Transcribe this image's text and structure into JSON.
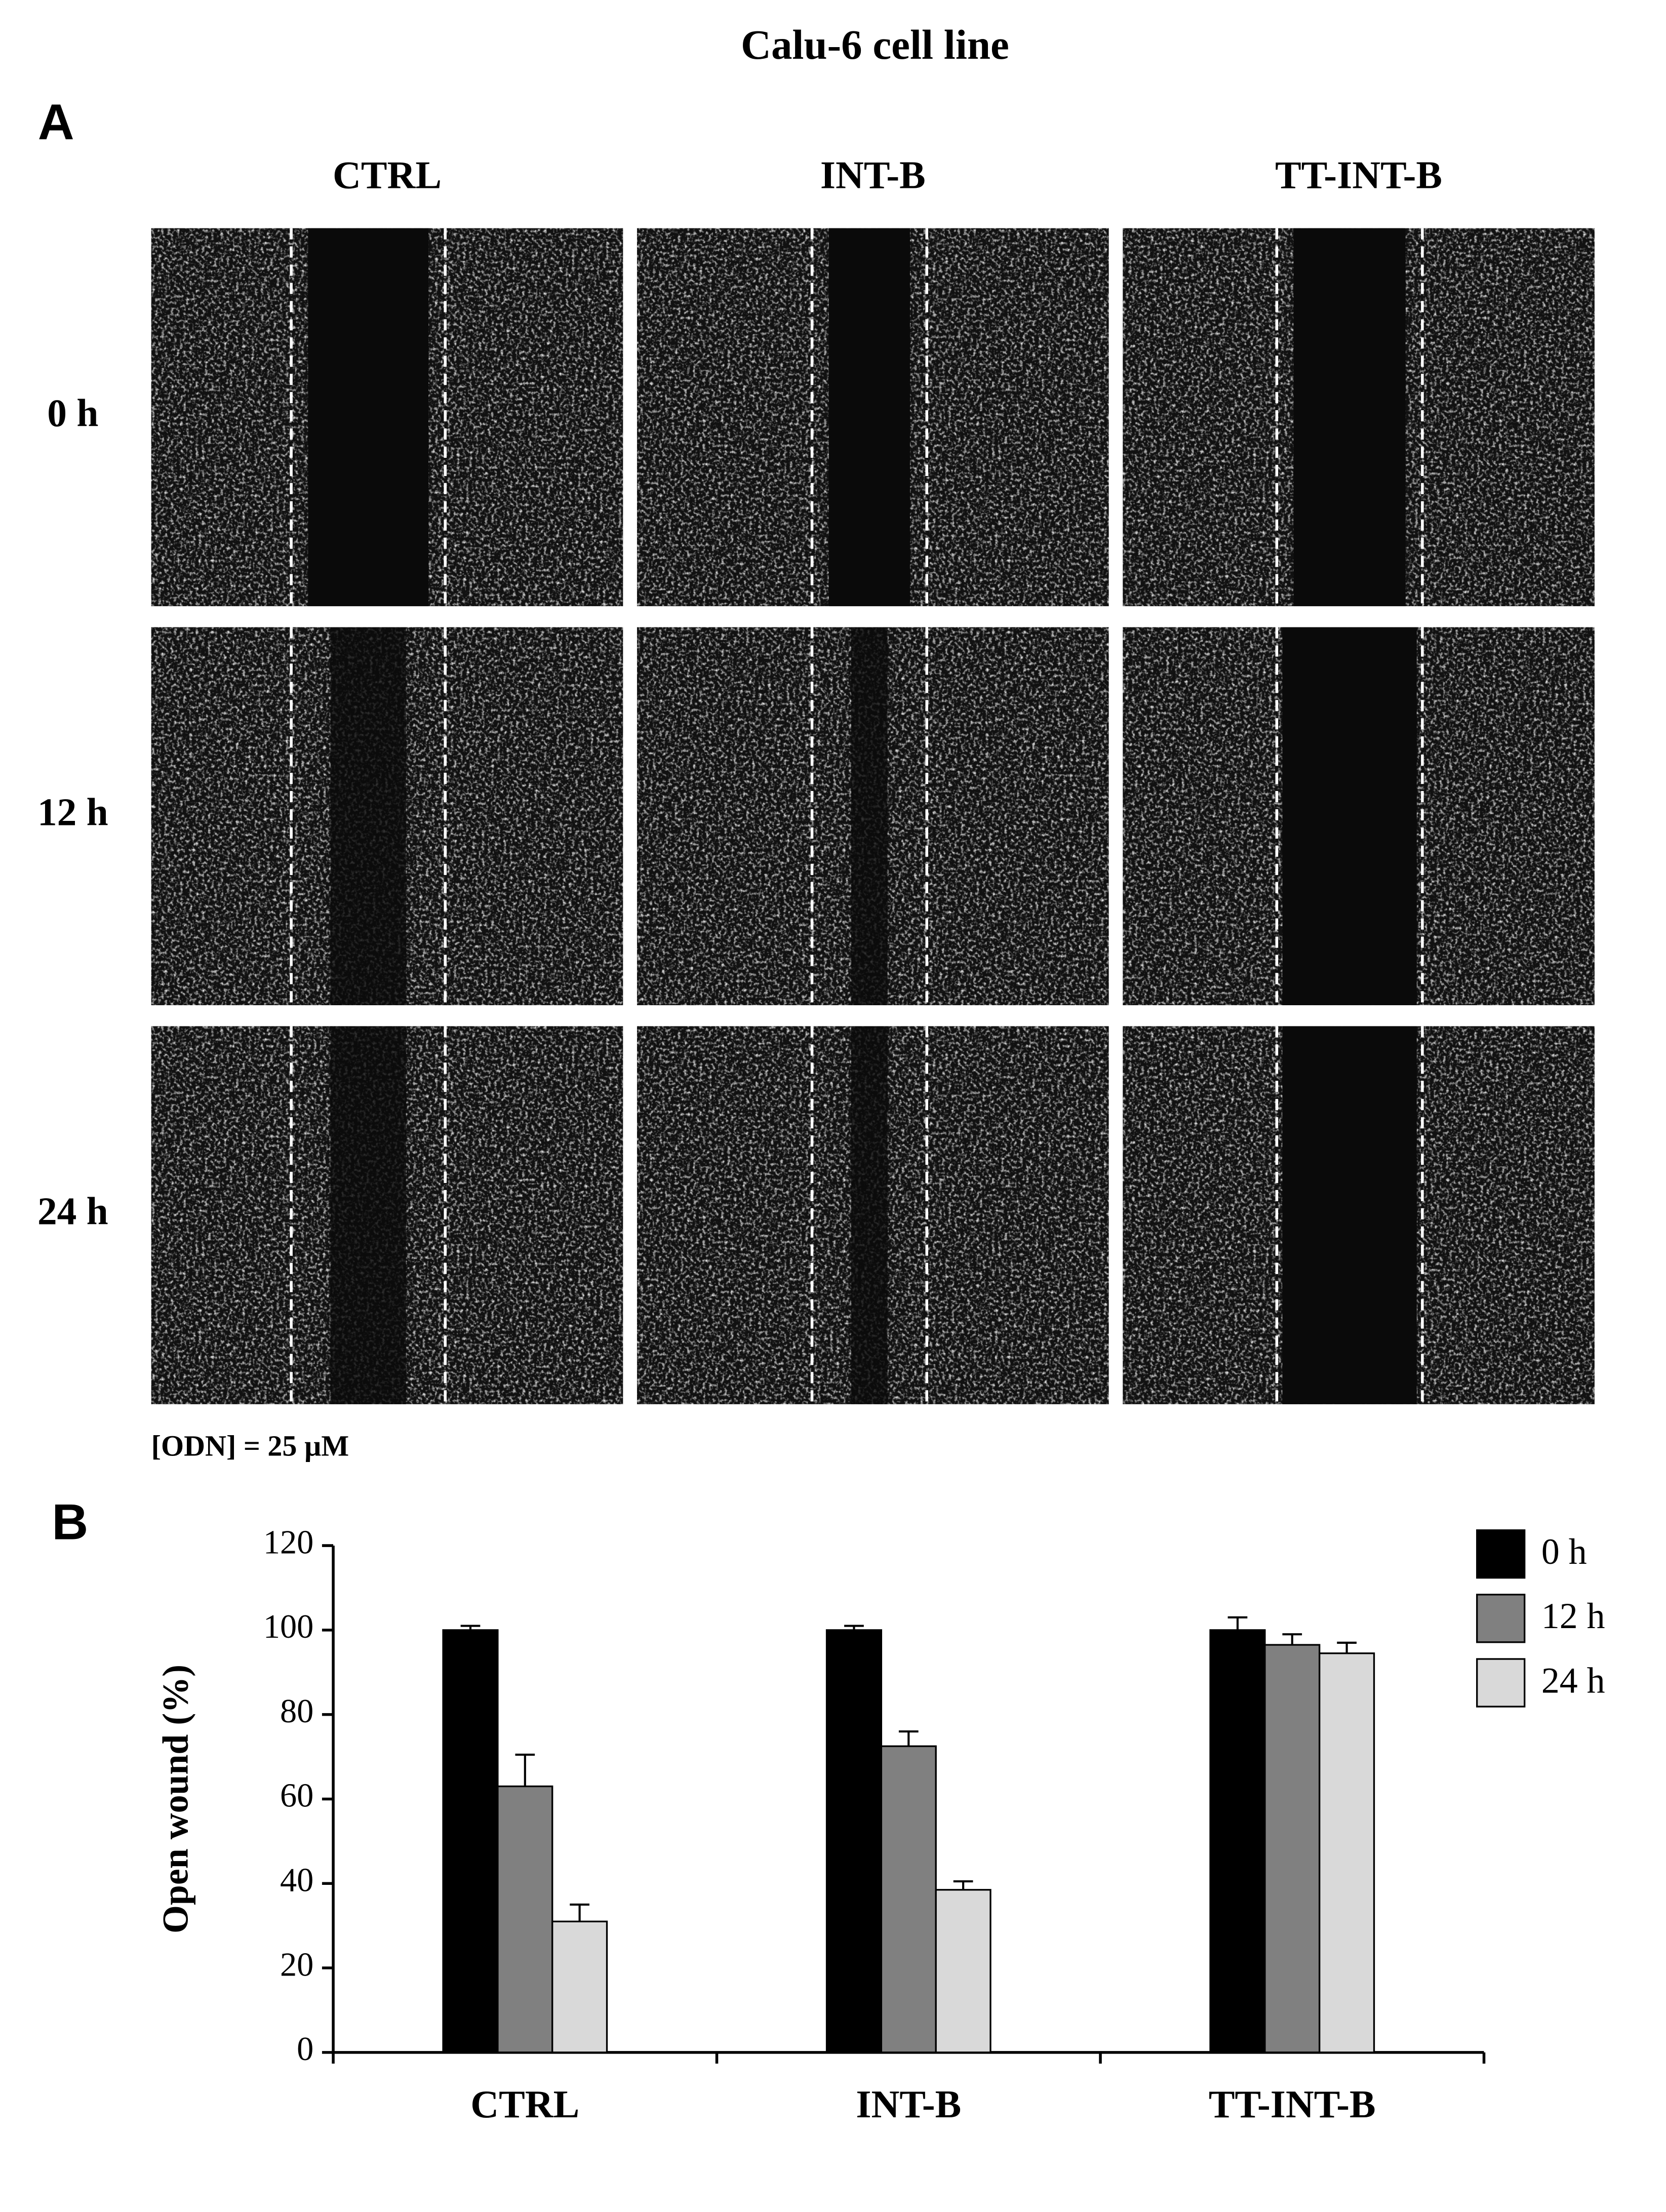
{
  "figure": {
    "title": "Calu-6 cell line",
    "panel_a": {
      "label": "A",
      "columns": [
        "CTRL",
        "INT-B",
        "TT-INT-B"
      ],
      "rows": [
        "0 h",
        "12 h",
        "24 h"
      ],
      "note": "[ODN] = 25 µM"
    }
  },
  "chart_data": {
    "type": "bar",
    "panel_label": "B",
    "y_label": "Open wound (%)",
    "categories": [
      "CTRL",
      "INT-B",
      "TT-INT-B"
    ],
    "series": [
      {
        "name": "0 h",
        "color": "#000000",
        "values": [
          100,
          100,
          100
        ],
        "errors": [
          1,
          1,
          3
        ]
      },
      {
        "name": "12 h",
        "color": "#808080",
        "values": [
          63,
          72.5,
          96.5
        ],
        "errors": [
          7.5,
          3.5,
          2.5
        ]
      },
      {
        "name": "24 h",
        "color": "#d9d9d9",
        "values": [
          31,
          38.5,
          94.5
        ],
        "errors": [
          4,
          2,
          2.5
        ]
      }
    ],
    "ylim": [
      0,
      120
    ],
    "yticks": [
      0,
      20,
      40,
      60,
      80,
      100,
      120
    ],
    "legend": "top-right"
  }
}
